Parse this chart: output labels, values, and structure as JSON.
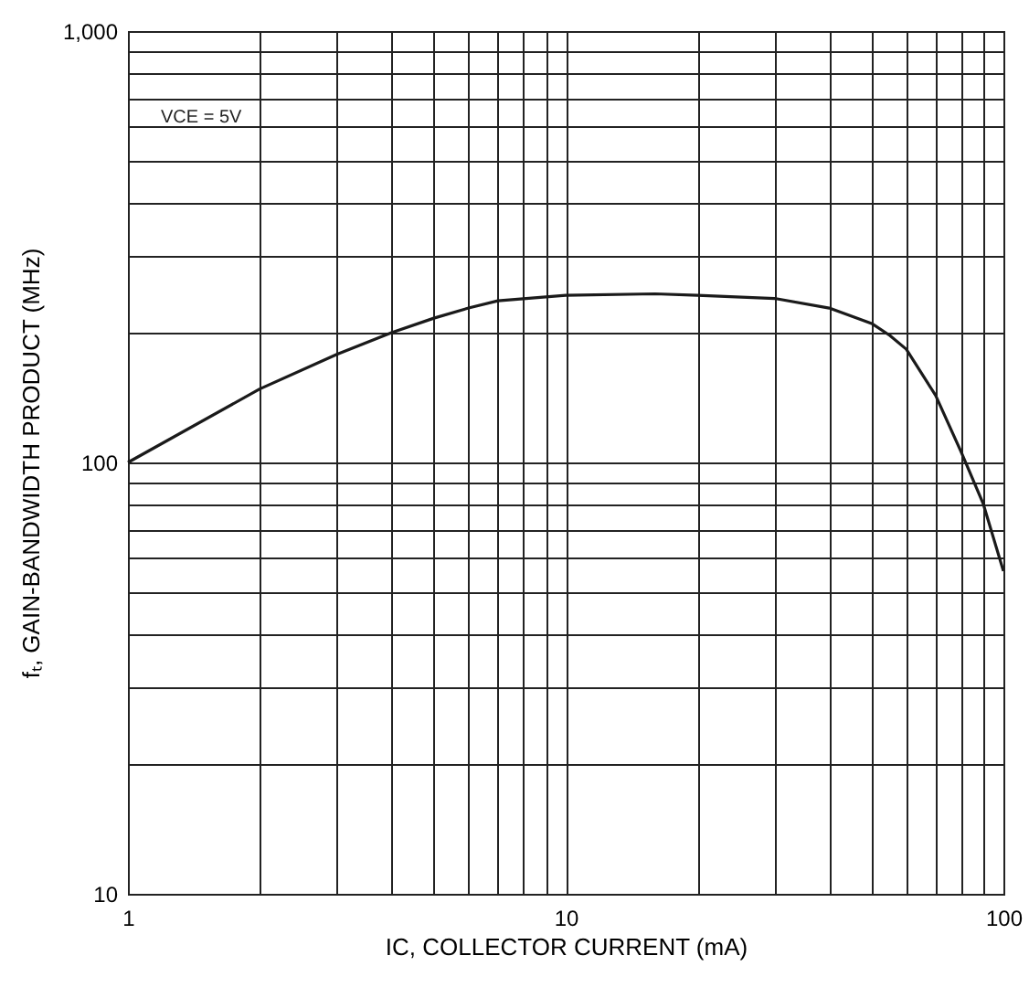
{
  "chart_data": {
    "type": "line",
    "xlabel": "IC, COLLECTOR CURRENT (mA)",
    "ylabel": "fₜ, GAIN-BANDWIDTH PRODUCT (MHz)",
    "annotations": [
      "VCE = 5V"
    ],
    "log": "xy",
    "grid": true,
    "marker": "none",
    "line_style": "solid",
    "xlim": [
      1,
      100
    ],
    "ylim": [
      10,
      1000
    ],
    "xticks": [
      1,
      {
        "value": 2,
        "label": null
      },
      {
        "value": 3,
        "label": null
      },
      {
        "value": 4,
        "label": null
      },
      {
        "value": 5,
        "label": null
      },
      {
        "value": 6,
        "label": null
      },
      {
        "value": 7,
        "label": null
      },
      {
        "value": 8,
        "label": null
      },
      {
        "value": 9,
        "label": null
      },
      10,
      {
        "value": 20,
        "label": null
      },
      {
        "value": 30,
        "label": null
      },
      {
        "value": 40,
        "label": null
      },
      {
        "value": 50,
        "label": null
      },
      {
        "value": 60,
        "label": null
      },
      {
        "value": 70,
        "label": null
      },
      {
        "value": 80,
        "label": null
      },
      {
        "value": 90,
        "label": null
      },
      100
    ],
    "yticks": [
      10,
      {
        "value": 20,
        "label": null
      },
      {
        "value": 30,
        "label": null
      },
      {
        "value": 40,
        "label": null
      },
      {
        "value": 50,
        "label": null
      },
      {
        "value": 60,
        "label": null
      },
      {
        "value": 70,
        "label": null
      },
      {
        "value": 80,
        "label": null
      },
      {
        "value": 90,
        "label": null
      },
      100,
      {
        "value": 200,
        "label": null
      },
      {
        "value": 300,
        "label": null
      },
      {
        "value": 400,
        "label": null
      },
      {
        "value": 500,
        "label": null
      },
      {
        "value": 600,
        "label": null
      },
      {
        "value": 700,
        "label": null
      },
      {
        "value": 800,
        "label": null
      },
      {
        "value": 900,
        "label": null
      },
      {
        "value": 1000,
        "label": "1,000"
      }
    ],
    "series": [
      {
        "color": "#1a1a1a",
        "x": [
          1,
          2,
          3,
          4,
          5,
          6,
          7,
          10,
          16,
          20,
          30,
          40,
          50,
          55,
          60,
          70,
          80,
          90,
          100
        ],
        "values": [
          100,
          148,
          178,
          200,
          216,
          228,
          237,
          244,
          246,
          244,
          240,
          228,
          210,
          197,
          183,
          143,
          106,
          80,
          56
        ]
      }
    ]
  }
}
